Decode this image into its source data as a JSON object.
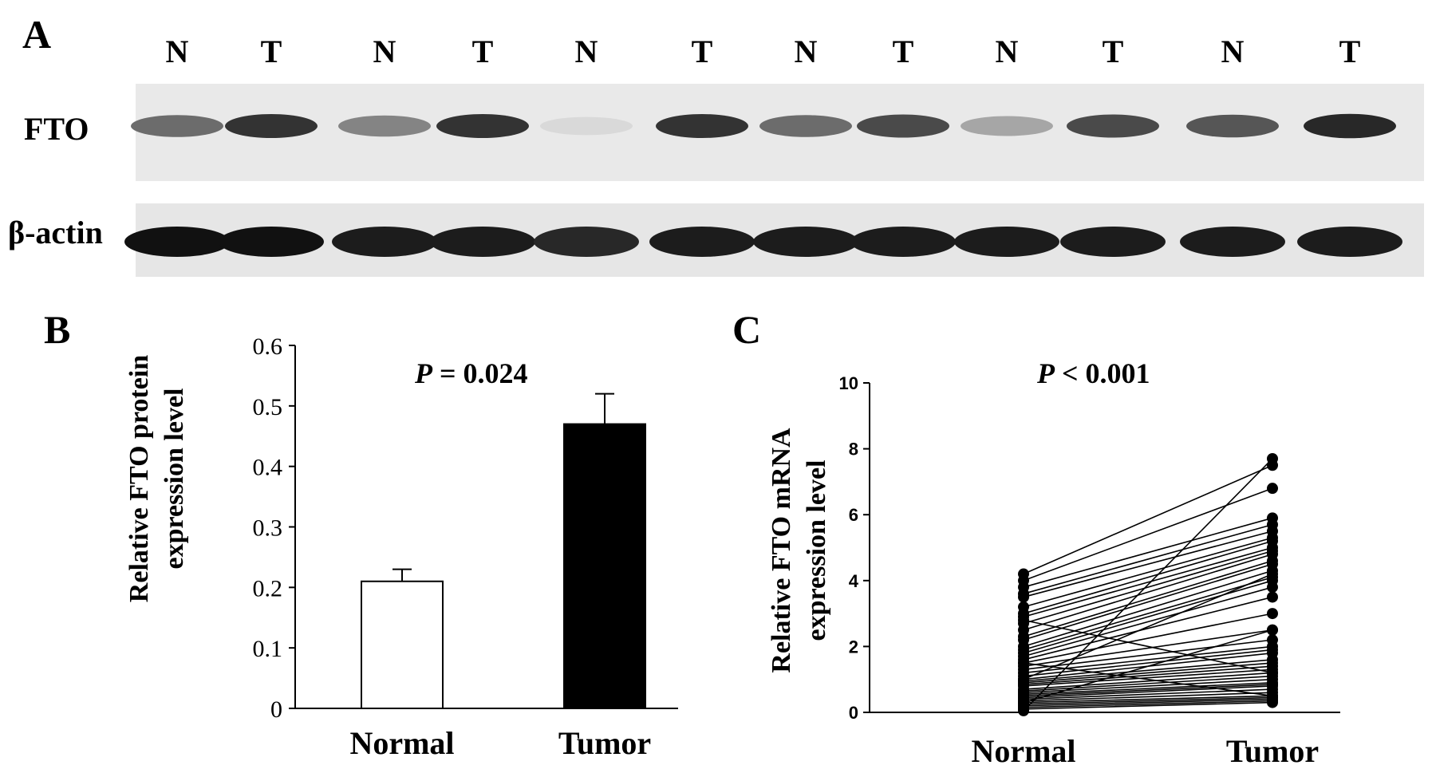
{
  "panel_a": {
    "letter": "A",
    "lane_labels": [
      "N",
      "T",
      "N",
      "T",
      "N",
      "T",
      "N",
      "T",
      "N",
      "T",
      "N",
      "T"
    ],
    "rows": [
      {
        "label": "FTO",
        "band_intensity": [
          0.55,
          0.8,
          0.45,
          0.8,
          0.08,
          0.8,
          0.55,
          0.7,
          0.3,
          0.7,
          0.65,
          0.85
        ]
      },
      {
        "label": "β-actin",
        "band_intensity": [
          0.95,
          0.95,
          0.9,
          0.9,
          0.85,
          0.9,
          0.9,
          0.9,
          0.9,
          0.9,
          0.9,
          0.9
        ]
      }
    ]
  },
  "chart_data": [
    {
      "panel": "B",
      "type": "bar",
      "pvalue_label": "P = 0.024",
      "pvalue_italic": "P",
      "pvalue_rest": " = 0.024",
      "ylabel_line1": "Relative FTO protein",
      "ylabel_line2": "expression level",
      "xlabel": "",
      "categories": [
        "Normal",
        "Tumor"
      ],
      "values": [
        0.21,
        0.47
      ],
      "errors": [
        0.02,
        0.05
      ],
      "bar_colors": [
        "#ffffff",
        "#000000"
      ],
      "ylim": [
        0,
        0.6
      ],
      "yticks": [
        "0",
        "0.1",
        "0.2",
        "0.3",
        "0.4",
        "0.5",
        "0.6"
      ],
      "grid": false
    },
    {
      "panel": "C",
      "type": "line",
      "subtype": "paired-dot-plot",
      "pvalue_label": "P < 0.001",
      "pvalue_italic": "P",
      "pvalue_rest": " < 0.001",
      "ylabel_line1": "Relative FTO mRNA",
      "ylabel_line2": "expression level",
      "xlabel": "",
      "categories": [
        "Normal",
        "Tumor"
      ],
      "ylim": [
        0,
        10
      ],
      "yticks": [
        "0",
        "2",
        "4",
        "6",
        "8",
        "10"
      ],
      "grid": false,
      "pairs": [
        [
          4.2,
          7.5
        ],
        [
          4.0,
          6.8
        ],
        [
          3.8,
          5.9
        ],
        [
          3.6,
          5.7
        ],
        [
          3.5,
          5.5
        ],
        [
          3.2,
          5.3
        ],
        [
          3.0,
          5.2
        ],
        [
          2.9,
          5.0
        ],
        [
          2.7,
          4.9
        ],
        [
          2.5,
          4.8
        ],
        [
          2.3,
          4.6
        ],
        [
          2.2,
          4.5
        ],
        [
          2.0,
          4.3
        ],
        [
          1.9,
          4.1
        ],
        [
          1.8,
          4.0
        ],
        [
          1.7,
          3.8
        ],
        [
          1.6,
          3.5
        ],
        [
          1.5,
          3.0
        ],
        [
          1.4,
          2.5
        ],
        [
          1.3,
          2.2
        ],
        [
          1.2,
          2.0
        ],
        [
          1.1,
          1.9
        ],
        [
          1.0,
          1.8
        ],
        [
          0.95,
          1.6
        ],
        [
          0.9,
          1.5
        ],
        [
          0.85,
          1.4
        ],
        [
          0.8,
          1.3
        ],
        [
          0.7,
          1.2
        ],
        [
          0.65,
          1.1
        ],
        [
          0.6,
          1.0
        ],
        [
          0.55,
          0.9
        ],
        [
          0.5,
          0.85
        ],
        [
          0.45,
          0.8
        ],
        [
          0.4,
          0.7
        ],
        [
          0.35,
          0.6
        ],
        [
          0.3,
          0.5
        ],
        [
          0.25,
          0.45
        ],
        [
          0.2,
          0.4
        ],
        [
          0.15,
          0.35
        ],
        [
          0.1,
          0.3
        ],
        [
          0.05,
          7.7
        ],
        [
          1.0,
          4.2
        ],
        [
          2.8,
          1.2
        ],
        [
          0.3,
          2.5
        ],
        [
          1.5,
          0.5
        ]
      ]
    }
  ]
}
